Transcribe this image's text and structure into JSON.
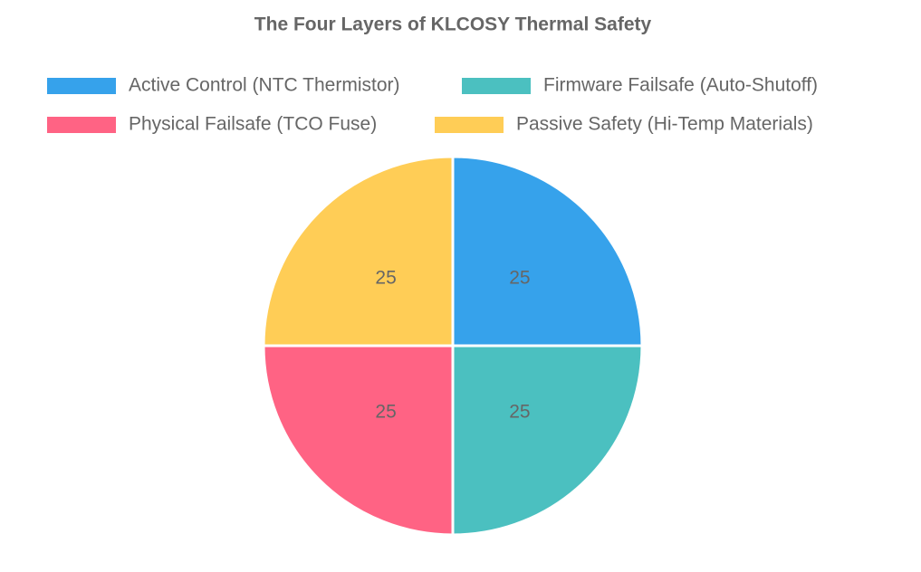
{
  "chart_data": {
    "type": "pie",
    "title": "The Four Layers of KLCOSY Thermal Safety",
    "categories": [
      "Active Control (NTC Thermistor)",
      "Firmware Failsafe (Auto-Shutoff)",
      "Physical Failsafe (TCO Fuse)",
      "Passive Safety (Hi-Temp Materials)"
    ],
    "values": [
      25,
      25,
      25,
      25
    ],
    "colors": [
      "#36a2eb",
      "#4bc0c0",
      "#ff6384",
      "#ffcd56"
    ],
    "legend": "top"
  }
}
